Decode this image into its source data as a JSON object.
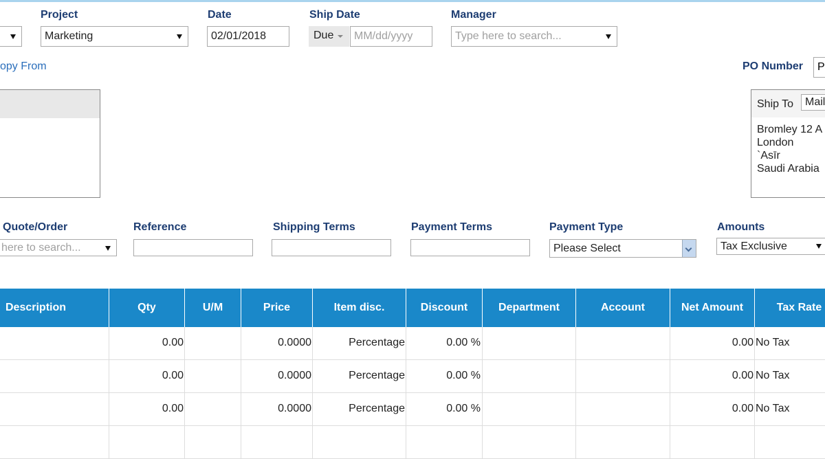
{
  "header_fields": {
    "project": {
      "label": "Project",
      "value": "Marketing"
    },
    "date": {
      "label": "Date",
      "value": "02/01/2018"
    },
    "ship_date": {
      "label": "Ship Date",
      "button": "Due",
      "placeholder": "MM/dd/yyyy"
    },
    "manager": {
      "label": "Manager",
      "placeholder": "Type here to search..."
    }
  },
  "copy_from": "opy From",
  "po_number": {
    "label": "PO Number",
    "value": "P"
  },
  "ship_to": {
    "label": "Ship To",
    "value": "Mail",
    "address": [
      "Bromley 12 A",
      "London",
      "`Asīr",
      "Saudi Arabia"
    ]
  },
  "details": {
    "quote_order": {
      "label": "Quote/Order",
      "placeholder": "here to search..."
    },
    "reference": {
      "label": "Reference"
    },
    "shipping_terms": {
      "label": "Shipping Terms"
    },
    "payment_terms": {
      "label": "Payment Terms"
    },
    "payment_type": {
      "label": "Payment Type",
      "value": "Please Select"
    },
    "amounts": {
      "label": "Amounts",
      "value": "Tax Exclusive"
    }
  },
  "table": {
    "columns": [
      "Description",
      "Qty",
      "U/M",
      "Price",
      "Item disc.",
      "Discount",
      "Department",
      "Account",
      "Net Amount",
      "Tax Rate"
    ],
    "rows": [
      {
        "qty": "0.00",
        "price": "0.0000",
        "item_disc": "Percentage",
        "discount": "0.00 %",
        "net_amount": "0.00",
        "tax_rate": "No Tax"
      },
      {
        "qty": "0.00",
        "price": "0.0000",
        "item_disc": "Percentage",
        "discount": "0.00 %",
        "net_amount": "0.00",
        "tax_rate": "No Tax"
      },
      {
        "qty": "0.00",
        "price": "0.0000",
        "item_disc": "Percentage",
        "discount": "0.00 %",
        "net_amount": "0.00",
        "tax_rate": "No Tax"
      }
    ]
  }
}
